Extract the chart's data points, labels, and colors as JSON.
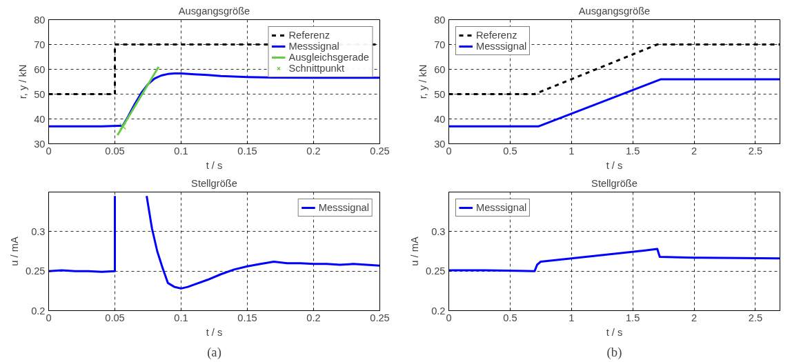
{
  "chart_data": [
    {
      "type": "line",
      "title": "Ausgangsgröße",
      "xlabel": "t / s",
      "ylabel": "r, y / kN",
      "xlim": [
        0,
        0.25
      ],
      "ylim": [
        30,
        80
      ],
      "xticks": [
        0,
        0.05,
        0.1,
        0.15,
        0.2,
        0.25
      ],
      "yticks": [
        30,
        40,
        50,
        60,
        70,
        80
      ],
      "grid": true,
      "legend": "top right",
      "series": [
        {
          "name": "Referenz",
          "color": "#000000",
          "line_style": "dashed",
          "x": [
            0,
            0.05,
            0.05,
            0.25
          ],
          "values": [
            50,
            50,
            70,
            70
          ]
        },
        {
          "name": "Messsignal",
          "color": "#0000ff",
          "line_style": "solid",
          "x": [
            0,
            0.02,
            0.04,
            0.056,
            0.06,
            0.065,
            0.07,
            0.075,
            0.08,
            0.085,
            0.09,
            0.095,
            0.1,
            0.11,
            0.12,
            0.13,
            0.15,
            0.17,
            0.2,
            0.25
          ],
          "values": [
            37,
            37,
            37,
            37.3,
            41,
            46,
            50.5,
            54,
            56.3,
            57.5,
            58.1,
            58.3,
            58.3,
            58,
            57.7,
            57.3,
            56.9,
            56.7,
            56.6,
            56.6
          ]
        },
        {
          "name": "Ausgleichsgerade",
          "color": "#66cc44",
          "line_style": "solid",
          "x": [
            0.052,
            0.083
          ],
          "values": [
            33.5,
            61
          ]
        },
        {
          "name": "Schnittpunkt",
          "type": "scatter",
          "marker": "cross",
          "color": "#66cc44",
          "x": [
            0.056
          ],
          "values": [
            37
          ]
        }
      ]
    },
    {
      "type": "line",
      "title": "Ausgangsgröße",
      "xlabel": "t / s",
      "ylabel": "r, y / kN",
      "xlim": [
        0,
        2.7
      ],
      "ylim": [
        30,
        80
      ],
      "xticks": [
        0,
        0.5,
        1,
        1.5,
        2,
        2.5
      ],
      "yticks": [
        30,
        40,
        50,
        60,
        70,
        80
      ],
      "grid": true,
      "legend": "top left",
      "series": [
        {
          "name": "Referenz",
          "color": "#000000",
          "line_style": "dashed",
          "x": [
            0,
            0.7,
            1.7,
            2.7
          ],
          "values": [
            50,
            50,
            70,
            70
          ]
        },
        {
          "name": "Messsignal",
          "color": "#0000ff",
          "line_style": "solid",
          "x": [
            0,
            0.73,
            1.73,
            2.7
          ],
          "values": [
            37,
            37,
            56,
            56
          ]
        }
      ]
    },
    {
      "type": "line",
      "title": "Stellgröße",
      "xlabel": "t / s",
      "ylabel": "u / mA",
      "xlim": [
        0,
        0.25
      ],
      "ylim": [
        0.2,
        0.35
      ],
      "xticks": [
        0,
        0.05,
        0.1,
        0.15,
        0.2,
        0.25
      ],
      "yticks": [
        0.2,
        0.25,
        0.3
      ],
      "grid": true,
      "legend": "top right",
      "annotations": [
        "(a)"
      ],
      "series": [
        {
          "name": "Messsignal",
          "color": "#0000ff",
          "line_style": "solid",
          "x": [
            0,
            0.01,
            0.02,
            0.03,
            0.04,
            0.05,
            0.05,
            0.06,
            0.074,
            0.078,
            0.082,
            0.086,
            0.09,
            0.095,
            0.1,
            0.105,
            0.11,
            0.12,
            0.13,
            0.14,
            0.15,
            0.16,
            0.17,
            0.18,
            0.19,
            0.2,
            0.21,
            0.22,
            0.23,
            0.24,
            0.25
          ],
          "values": [
            0.25,
            0.251,
            0.25,
            0.25,
            0.249,
            0.25,
            0.345,
            null,
            0.345,
            0.304,
            0.275,
            0.254,
            0.235,
            0.23,
            0.228,
            0.23,
            0.233,
            0.239,
            0.246,
            0.252,
            0.256,
            0.259,
            0.262,
            0.26,
            0.26,
            0.259,
            0.259,
            0.258,
            0.259,
            0.258,
            0.257
          ]
        }
      ]
    },
    {
      "type": "line",
      "title": "Stellgröße",
      "xlabel": "t / s",
      "ylabel": "u / mA",
      "xlim": [
        0,
        2.7
      ],
      "ylim": [
        0.2,
        0.35
      ],
      "xticks": [
        0,
        0.5,
        1,
        1.5,
        2,
        2.5
      ],
      "yticks": [
        0.2,
        0.25,
        0.3
      ],
      "grid": true,
      "legend": "top left",
      "annotations": [
        "(b)"
      ],
      "series": [
        {
          "name": "Messsignal",
          "color": "#0000ff",
          "line_style": "solid",
          "x": [
            0,
            0.3,
            0.7,
            0.72,
            0.75,
            1.0,
            1.3,
            1.6,
            1.7,
            1.72,
            2.0,
            2.7
          ],
          "values": [
            0.251,
            0.251,
            0.25,
            0.258,
            0.262,
            0.266,
            0.271,
            0.276,
            0.278,
            0.268,
            0.267,
            0.266
          ]
        }
      ]
    }
  ]
}
